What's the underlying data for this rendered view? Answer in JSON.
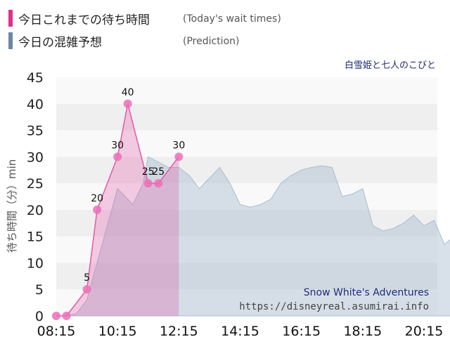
{
  "legend": [
    {
      "label": "今日これまでの待ち時間",
      "note": "(Today's wait times)",
      "color": "#e0308a"
    },
    {
      "label": "今日の混雑予想",
      "note": "(Prediction)",
      "color": "#6d86a8"
    }
  ],
  "attraction_name": "白雪姫と七人のこびと",
  "watermark": {
    "line1": "Snow White's Adventures",
    "line2": "https://disneyreal.asumirai.info"
  },
  "chart_data": {
    "type": "area",
    "ylabel": "待ち時間（分）min",
    "ylim": [
      0,
      45
    ],
    "yticks": [
      0,
      5,
      10,
      15,
      20,
      25,
      30,
      35,
      40,
      45
    ],
    "xtick_labels": [
      "08:15",
      "10:15",
      "12:15",
      "14:15",
      "16:15",
      "18:15",
      "20:15"
    ],
    "grid": "horizontal bands",
    "series": [
      {
        "name": "今日これまでの待ち時間",
        "style": "pink area with markers",
        "color": "#e0308a",
        "points": [
          {
            "x": "08:15",
            "y": 0
          },
          {
            "x": "08:35",
            "y": 0
          },
          {
            "x": "09:15",
            "y": 5
          },
          {
            "x": "09:35",
            "y": 20
          },
          {
            "x": "10:15",
            "y": 30
          },
          {
            "x": "10:35",
            "y": 40
          },
          {
            "x": "11:15",
            "y": 25
          },
          {
            "x": "11:35",
            "y": 25
          },
          {
            "x": "12:15",
            "y": 30
          }
        ]
      },
      {
        "name": "今日の混雑予想",
        "style": "grey-blue area",
        "color": "#6d86a8",
        "points": [
          {
            "x": "08:15",
            "y": 0
          },
          {
            "x": "08:35",
            "y": 0
          },
          {
            "x": "08:55",
            "y": 0.5
          },
          {
            "x": "09:15",
            "y": 3
          },
          {
            "x": "09:35",
            "y": 10
          },
          {
            "x": "09:55",
            "y": 17
          },
          {
            "x": "10:15",
            "y": 24
          },
          {
            "x": "10:35",
            "y": 22
          },
          {
            "x": "10:45",
            "y": 21
          },
          {
            "x": "11:05",
            "y": 25
          },
          {
            "x": "11:15",
            "y": 30
          },
          {
            "x": "11:35",
            "y": 29
          },
          {
            "x": "11:55",
            "y": 28
          },
          {
            "x": "12:15",
            "y": 28
          },
          {
            "x": "12:35",
            "y": 26.5
          },
          {
            "x": "12:55",
            "y": 24
          },
          {
            "x": "13:15",
            "y": 26
          },
          {
            "x": "13:35",
            "y": 28
          },
          {
            "x": "13:55",
            "y": 25
          },
          {
            "x": "14:15",
            "y": 21
          },
          {
            "x": "14:35",
            "y": 20.5
          },
          {
            "x": "14:55",
            "y": 21
          },
          {
            "x": "15:15",
            "y": 22
          },
          {
            "x": "15:35",
            "y": 25
          },
          {
            "x": "15:55",
            "y": 26.5
          },
          {
            "x": "16:15",
            "y": 27.5
          },
          {
            "x": "16:35",
            "y": 28
          },
          {
            "x": "16:55",
            "y": 28.3
          },
          {
            "x": "17:15",
            "y": 28
          },
          {
            "x": "17:35",
            "y": 22.5
          },
          {
            "x": "17:55",
            "y": 23
          },
          {
            "x": "18:15",
            "y": 24
          },
          {
            "x": "18:35",
            "y": 17
          },
          {
            "x": "18:55",
            "y": 16
          },
          {
            "x": "19:15",
            "y": 16.5
          },
          {
            "x": "19:35",
            "y": 17.5
          },
          {
            "x": "19:55",
            "y": 19
          },
          {
            "x": "20:15",
            "y": 17
          },
          {
            "x": "20:35",
            "y": 18
          },
          {
            "x": "20:55",
            "y": 13.5
          },
          {
            "x": "21:15",
            "y": 15
          },
          {
            "x": "21:35",
            "y": 17.5
          }
        ]
      }
    ]
  }
}
